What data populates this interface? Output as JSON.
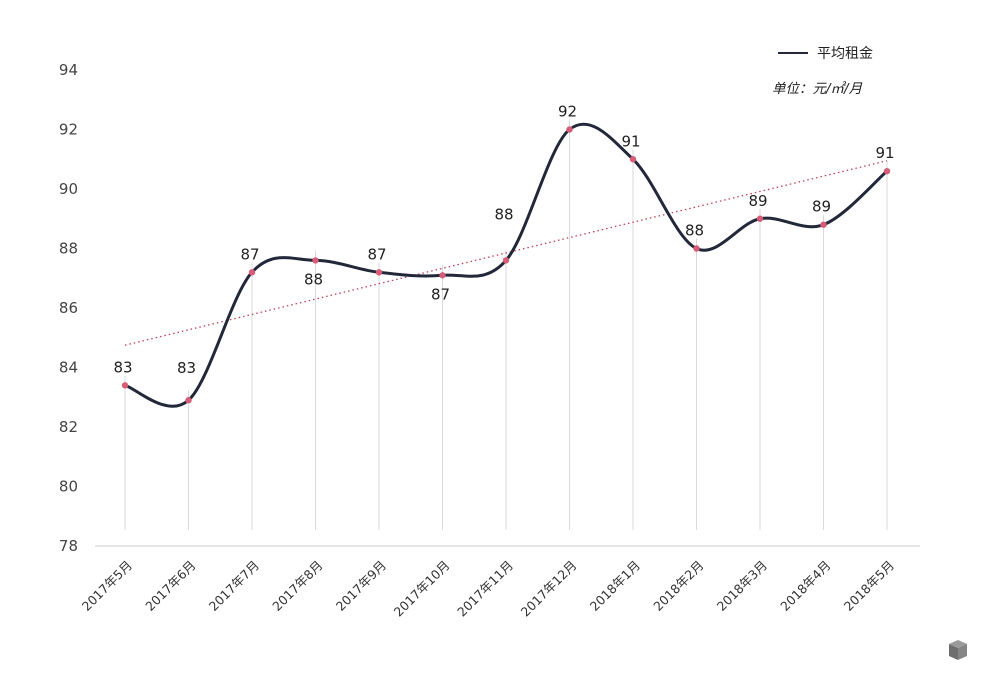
{
  "chart_data": {
    "type": "line",
    "categories": [
      "2017年5月",
      "2017年6月",
      "2017年7月",
      "2017年8月",
      "2017年9月",
      "2017年10月",
      "2017年11月",
      "2017年12月",
      "2018年1月",
      "2018年2月",
      "2018年3月",
      "2018年4月",
      "2018年5月"
    ],
    "series": [
      {
        "name": "平均租金",
        "values": [
          83.4,
          82.9,
          87.2,
          87.6,
          87.2,
          87.1,
          87.6,
          92.0,
          91.0,
          88.0,
          89.0,
          88.8,
          90.6
        ],
        "data_labels": [
          "83",
          "83",
          "87",
          "88",
          "87",
          "87",
          "88",
          "92",
          "91",
          "88",
          "89",
          "89",
          "91"
        ],
        "color": "#22283a"
      }
    ],
    "trendline": {
      "start": 84.75,
      "end": 90.95,
      "color": "#c0405a",
      "style": "dotted"
    },
    "marker_color": "#d65c78",
    "yticks": [
      "78",
      "80",
      "82",
      "84",
      "86",
      "88",
      "90",
      "92",
      "94"
    ],
    "ylim": [
      78,
      94
    ],
    "unit": "单位：元/㎡/月",
    "legend_position": "top-right",
    "grid": "vertical"
  }
}
